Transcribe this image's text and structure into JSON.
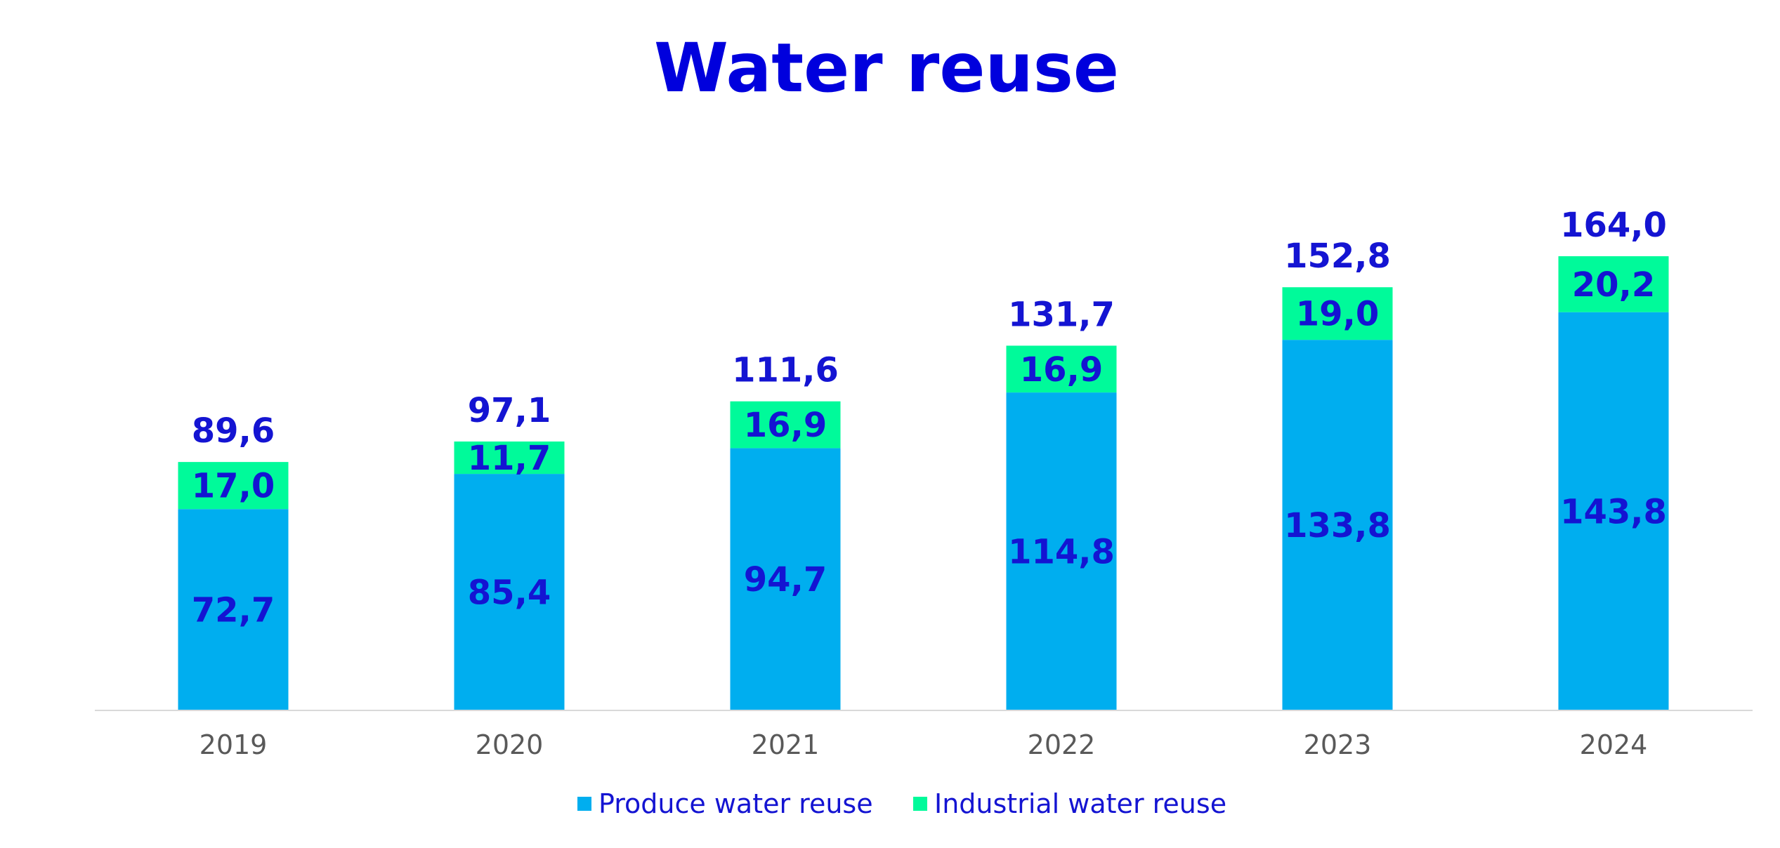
{
  "chart_data": {
    "type": "bar",
    "stacked": true,
    "title": "Water reuse",
    "categories": [
      "2019",
      "2020",
      "2021",
      "2022",
      "2023",
      "2024"
    ],
    "series": [
      {
        "name": "Produce water reuse",
        "values": [
          72.7,
          85.4,
          94.7,
          114.8,
          133.8,
          143.8
        ],
        "labels": [
          "72,7",
          "85,4",
          "94,7",
          "114,8",
          "133,8",
          "143,8"
        ],
        "color": "#00AEEF"
      },
      {
        "name": "Industrial water reuse",
        "values": [
          17.0,
          11.7,
          16.9,
          16.9,
          19.0,
          20.2
        ],
        "labels": [
          "17,0",
          "11,7",
          "16,9",
          "16,9",
          "19,0",
          "20,2"
        ],
        "color": "#00FA9A"
      }
    ],
    "totals": [
      89.6,
      97.1,
      111.6,
      131.7,
      152.8,
      164.0
    ],
    "total_labels": [
      "89,6",
      "97,1",
      "111,6",
      "131,7",
      "152,8",
      "164,0"
    ],
    "ylim": [
      0,
      180
    ],
    "grid": false,
    "legend_position": "bottom",
    "title_color": "#0000DD",
    "label_color": "#1414D2",
    "tick_color": "#595959",
    "axis_color": "#D9D9D9"
  }
}
